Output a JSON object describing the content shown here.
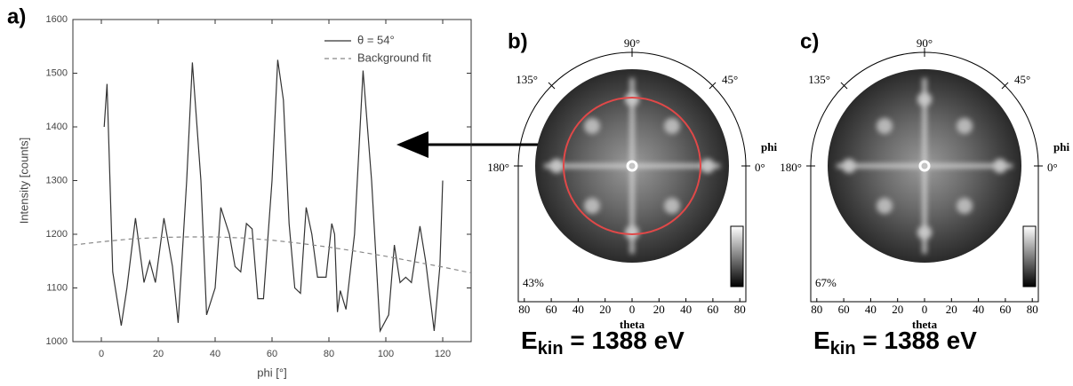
{
  "chart_data": {
    "type": "line",
    "panel_label": "a)",
    "xlabel": "phi [°]",
    "ylabel": "Intensity [counts]",
    "xlim": [
      -10,
      130
    ],
    "xticks": [
      0,
      20,
      40,
      60,
      80,
      100,
      120
    ],
    "ylim": [
      1000,
      1600
    ],
    "yticks": [
      1000,
      1100,
      1200,
      1300,
      1400,
      1500,
      1600
    ],
    "legend": "upper right",
    "series": [
      {
        "name": "θ = 54°",
        "color": "#333333",
        "dash": false,
        "x": [
          1,
          2,
          4,
          7,
          9,
          12,
          15,
          17,
          19,
          22,
          25,
          27,
          30,
          32,
          35,
          37,
          40,
          42,
          45,
          47,
          49,
          51,
          53,
          55,
          57,
          60,
          62,
          64,
          66,
          68,
          70,
          72,
          74,
          76,
          79,
          81,
          82,
          83,
          84,
          86,
          89,
          92,
          95,
          98,
          101,
          103,
          105,
          107,
          109,
          112,
          114,
          117,
          119,
          120
        ],
        "values": [
          1400,
          1480,
          1130,
          1030,
          1100,
          1230,
          1110,
          1150,
          1110,
          1230,
          1140,
          1035,
          1300,
          1520,
          1300,
          1050,
          1100,
          1250,
          1200,
          1140,
          1130,
          1220,
          1210,
          1080,
          1080,
          1300,
          1525,
          1450,
          1220,
          1100,
          1090,
          1250,
          1200,
          1120,
          1120,
          1220,
          1200,
          1055,
          1095,
          1060,
          1200,
          1505,
          1300,
          1020,
          1050,
          1180,
          1110,
          1120,
          1110,
          1215,
          1150,
          1020,
          1140,
          1300
        ]
      },
      {
        "name": "Background fit",
        "color": "#888888",
        "dash": true,
        "x": [
          -10,
          0,
          10,
          20,
          30,
          40,
          50,
          60,
          70,
          80,
          90,
          100,
          110,
          120,
          130
        ],
        "values": [
          1180,
          1186,
          1191,
          1194,
          1195,
          1195,
          1193,
          1189,
          1183,
          1176,
          1168,
          1159,
          1149,
          1139,
          1128
        ]
      }
    ]
  },
  "polar_panels": [
    {
      "label": "b)",
      "angle_labels": [
        "90°",
        "45°",
        "135°",
        "180°",
        "0°"
      ],
      "radial_label": "phi",
      "theta_label": "theta",
      "theta_ticks": [
        80,
        60,
        40,
        20,
        0,
        20,
        40,
        60,
        80
      ],
      "percent": "43%",
      "energy": {
        "main": "E",
        "sub": "kin",
        "rest": " = 1388 eV"
      },
      "ring": true,
      "ring_color": "#e04848"
    },
    {
      "label": "c)",
      "angle_labels": [
        "90°",
        "45°",
        "135°",
        "180°",
        "0°"
      ],
      "radial_label": "phi",
      "theta_label": "theta",
      "theta_ticks": [
        80,
        60,
        40,
        20,
        0,
        20,
        40,
        60,
        80
      ],
      "percent": "67%",
      "energy": {
        "main": "E",
        "sub": "kin",
        "rest": " = 1388 eV"
      },
      "ring": false,
      "ring_color": "#e04848"
    }
  ]
}
